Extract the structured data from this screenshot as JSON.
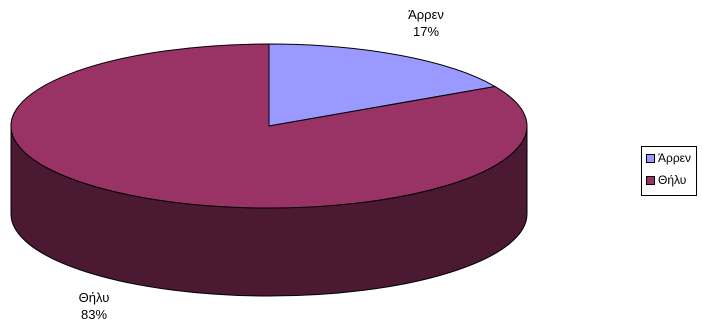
{
  "chart_data": {
    "type": "pie",
    "title": "",
    "categories": [
      "Άρρεν",
      "Θήλυ"
    ],
    "values": [
      17,
      83
    ],
    "value_unit": "%",
    "data_labels": [
      {
        "category": "Άρρεν",
        "percent": "17%"
      },
      {
        "category": "Θήλυ",
        "percent": "83%"
      }
    ],
    "colors": [
      "#9999ff",
      "#993366"
    ],
    "side_colors": [
      "#4c4c7f",
      "#4c1933"
    ],
    "three_d": true,
    "legend": {
      "position": "right",
      "entries": [
        "Άρρεν",
        "Θήλυ"
      ]
    }
  }
}
